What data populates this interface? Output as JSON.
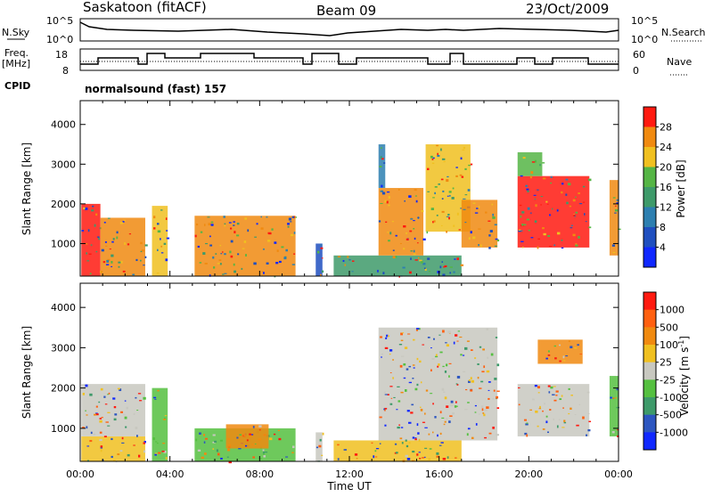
{
  "header": {
    "station": "Saskatoon (fitACF)",
    "beam": "Beam 09",
    "date": "23/Oct/2009"
  },
  "strip_labels": {
    "nsky": "N.Sky",
    "nsearch": "N.Search",
    "freq": "Freq.",
    "freq_unit": "[MHz]",
    "nave": "Nave",
    "cpid": "CPID",
    "power_exp_ticks": [
      "10^5",
      "10^0"
    ],
    "freq_ticks": [
      "18",
      "8"
    ],
    "nave_ticks": [
      "60",
      "0"
    ],
    "mode": "normalsound (fast) 157"
  },
  "chart_data": [
    {
      "type": "heatmap",
      "name": "Power",
      "ylabel": "Slant Range [km]",
      "xlabel": "Time UT",
      "ylim": [
        180,
        4600
      ],
      "xlim": [
        0,
        24
      ],
      "yticks": [
        1000,
        2000,
        3000,
        4000
      ],
      "xtick_labels": [
        "00:00",
        "04:00",
        "08:00",
        "12:00",
        "16:00",
        "20:00",
        "00:00"
      ],
      "colorbar": {
        "label": "Power [dB]",
        "ticks": [
          "4",
          "8",
          "12",
          "16",
          "20",
          "24",
          "28"
        ],
        "colors": [
          "#1028ff",
          "#1f4fbf",
          "#2d7fb0",
          "#3e9a6a",
          "#55b545",
          "#f0c020",
          "#f08a10",
          "#ff1a10"
        ]
      },
      "regions": [
        {
          "t0": 0.05,
          "t1": 0.9,
          "r0": 180,
          "r1": 2000,
          "c": "#ff1a10"
        },
        {
          "t0": 0.9,
          "t1": 2.9,
          "r0": 180,
          "r1": 1650,
          "c": "#f08a10"
        },
        {
          "t0": 3.2,
          "t1": 3.9,
          "r0": 180,
          "r1": 1950,
          "c": "#f0c020"
        },
        {
          "t0": 5.1,
          "t1": 9.6,
          "r0": 180,
          "r1": 1700,
          "c": "#f08a10"
        },
        {
          "t0": 10.5,
          "t1": 10.8,
          "r0": 180,
          "r1": 1000,
          "c": "#1f4fbf"
        },
        {
          "t0": 11.3,
          "t1": 17.0,
          "r0": 180,
          "r1": 700,
          "c": "#3e9a6a"
        },
        {
          "t0": 13.3,
          "t1": 15.3,
          "r0": 700,
          "r1": 2400,
          "c": "#f08a10"
        },
        {
          "t0": 13.3,
          "t1": 13.6,
          "r0": 2400,
          "r1": 3500,
          "c": "#2d7fb0"
        },
        {
          "t0": 15.4,
          "t1": 17.4,
          "r0": 1300,
          "r1": 3500,
          "c": "#f0c020"
        },
        {
          "t0": 17.0,
          "t1": 18.6,
          "r0": 900,
          "r1": 2100,
          "c": "#f08a10"
        },
        {
          "t0": 19.5,
          "t1": 22.7,
          "r0": 900,
          "r1": 2700,
          "c": "#ff1a10"
        },
        {
          "t0": 19.5,
          "t1": 20.6,
          "r0": 2700,
          "r1": 3300,
          "c": "#55b545"
        },
        {
          "t0": 23.6,
          "t1": 24.0,
          "r0": 700,
          "r1": 2600,
          "c": "#f08a10"
        }
      ]
    },
    {
      "type": "heatmap",
      "name": "Velocity",
      "ylabel": "Slant Range [km]",
      "xlabel": "Time UT",
      "ylim": [
        180,
        4600
      ],
      "xlim": [
        0,
        24
      ],
      "yticks": [
        1000,
        2000,
        3000,
        4000
      ],
      "xtick_labels": [
        "00:00",
        "04:00",
        "08:00",
        "12:00",
        "16:00",
        "20:00",
        "00:00"
      ],
      "colorbar": {
        "label": "Velocity [m s",
        "label_sup": "-1",
        "label_end": "]",
        "ticks": [
          "1000",
          "500",
          "100",
          "25",
          "-25",
          "-100",
          "-500",
          "-1000"
        ],
        "colors": [
          "#1028ff",
          "#2d56c0",
          "#3e9a6a",
          "#55c040",
          "#c8c8c0",
          "#f0c020",
          "#f08a10",
          "#ff6010",
          "#ff1a10"
        ]
      },
      "regions": [
        {
          "t0": 0.05,
          "t1": 2.9,
          "r0": 180,
          "r1": 800,
          "c": "#f0c020"
        },
        {
          "t0": 0.05,
          "t1": 2.9,
          "r0": 800,
          "r1": 2100,
          "c": "#c8c8c0"
        },
        {
          "t0": 3.2,
          "t1": 3.9,
          "r0": 180,
          "r1": 2000,
          "c": "#55c040"
        },
        {
          "t0": 5.1,
          "t1": 9.6,
          "r0": 180,
          "r1": 1000,
          "c": "#55c040"
        },
        {
          "t0": 6.5,
          "t1": 8.4,
          "r0": 500,
          "r1": 1100,
          "c": "#f08a10"
        },
        {
          "t0": 10.5,
          "t1": 10.8,
          "r0": 180,
          "r1": 900,
          "c": "#c8c8c0"
        },
        {
          "t0": 11.3,
          "t1": 17.0,
          "r0": 180,
          "r1": 700,
          "c": "#f0c020"
        },
        {
          "t0": 13.3,
          "t1": 18.6,
          "r0": 700,
          "r1": 3500,
          "c": "#c8c8c0"
        },
        {
          "t0": 19.5,
          "t1": 22.7,
          "r0": 800,
          "r1": 2100,
          "c": "#c8c8c0"
        },
        {
          "t0": 20.4,
          "t1": 22.4,
          "r0": 2600,
          "r1": 3200,
          "c": "#f08a10"
        },
        {
          "t0": 23.6,
          "t1": 24.0,
          "r0": 800,
          "r1": 2300,
          "c": "#55c040"
        }
      ]
    }
  ]
}
